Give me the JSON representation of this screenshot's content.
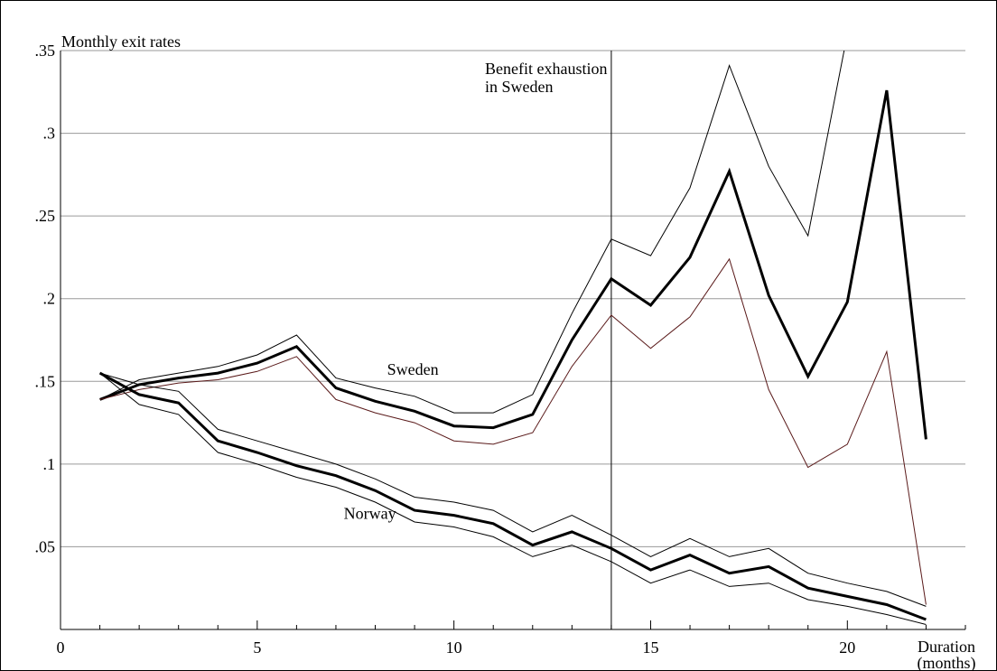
{
  "chart_data": {
    "type": "line",
    "ylabel": "Monthly exit rates",
    "xlabel": [
      "Duration",
      "(months)"
    ],
    "xlim": [
      0,
      23
    ],
    "ylim": [
      0,
      0.35
    ],
    "x_ticks": [
      0,
      5,
      10,
      15,
      20
    ],
    "x_tick_labels": [
      "0",
      "5",
      "10",
      "15",
      "20"
    ],
    "y_ticks": [
      0.05,
      0.1,
      0.15,
      0.2,
      0.25,
      0.3,
      0.35
    ],
    "y_tick_labels": [
      ".05",
      ".1",
      ".15",
      ".2",
      ".25",
      ".3",
      ".35"
    ],
    "grid": true,
    "vline": {
      "x": 14,
      "label": [
        "Benefit exhaustion",
        "in Sweden"
      ]
    },
    "annotations": [
      {
        "text": "Sweden",
        "x": 8.3,
        "y": 0.154
      },
      {
        "text": "Norway",
        "x": 7.2,
        "y": 0.067
      }
    ],
    "x": [
      1,
      2,
      3,
      4,
      5,
      6,
      7,
      8,
      9,
      10,
      11,
      12,
      13,
      14,
      15,
      16,
      17,
      18,
      19,
      20,
      21,
      22,
      23
    ],
    "series": [
      {
        "name": "Sweden",
        "role": "estimate",
        "color": "#000000",
        "width": 3,
        "values": [
          0.139,
          0.148,
          0.152,
          0.155,
          0.161,
          0.171,
          0.146,
          0.138,
          0.132,
          0.123,
          0.122,
          0.13,
          0.175,
          0.212,
          0.196,
          0.225,
          0.277,
          0.202,
          0.153,
          0.198,
          0.326,
          0.115,
          null
        ]
      },
      {
        "name": "Sweden",
        "role": "upper",
        "color": "#000000",
        "width": 1,
        "values": [
          0.139,
          0.151,
          0.155,
          0.159,
          0.166,
          0.178,
          0.152,
          0.146,
          0.141,
          0.131,
          0.131,
          0.142,
          0.191,
          0.236,
          0.226,
          0.267,
          0.341,
          0.28,
          0.238,
          0.36,
          null,
          null,
          null
        ]
      },
      {
        "name": "Sweden",
        "role": "lower",
        "color": "#5a1a1a",
        "width": 1,
        "values": [
          0.139,
          0.145,
          0.149,
          0.151,
          0.156,
          0.165,
          0.139,
          0.131,
          0.125,
          0.114,
          0.112,
          0.119,
          0.159,
          0.19,
          0.17,
          0.189,
          0.224,
          0.145,
          0.098,
          0.112,
          0.168,
          0.015,
          null
        ]
      },
      {
        "name": "Norway",
        "role": "estimate",
        "color": "#000000",
        "width": 3,
        "values": [
          0.155,
          0.142,
          0.137,
          0.114,
          0.107,
          0.099,
          0.093,
          0.084,
          0.072,
          0.069,
          0.064,
          0.051,
          0.059,
          0.049,
          0.036,
          0.045,
          0.034,
          0.038,
          0.025,
          0.02,
          0.015,
          0.006,
          null
        ]
      },
      {
        "name": "Norway",
        "role": "upper",
        "color": "#000000",
        "width": 1,
        "values": [
          0.155,
          0.148,
          0.144,
          0.121,
          0.114,
          0.107,
          0.1,
          0.091,
          0.08,
          0.077,
          0.072,
          0.059,
          0.069,
          0.057,
          0.044,
          0.055,
          0.044,
          0.049,
          0.034,
          0.028,
          0.023,
          0.014,
          null
        ]
      },
      {
        "name": "Norway",
        "role": "lower",
        "color": "#000000",
        "width": 1,
        "values": [
          0.155,
          0.136,
          0.13,
          0.107,
          0.1,
          0.092,
          0.086,
          0.077,
          0.065,
          0.062,
          0.056,
          0.044,
          0.051,
          0.041,
          0.028,
          0.036,
          0.026,
          0.028,
          0.018,
          0.014,
          0.009,
          0.003,
          null
        ]
      }
    ]
  }
}
